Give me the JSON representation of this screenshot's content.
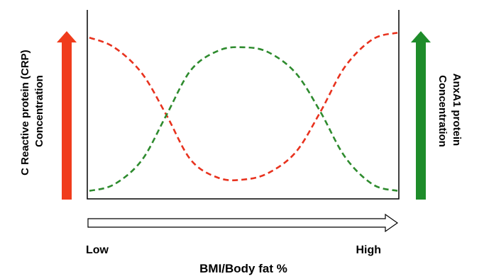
{
  "chart_data": {
    "type": "line",
    "title": "",
    "xlabel": "BMI/Body fat %",
    "x_tick_labels": [
      "Low",
      "High"
    ],
    "left_axis_label": [
      "C Reactive protein (CRP)",
      "Concentration"
    ],
    "right_axis_label": [
      "AnxA1 protein",
      "Concentration"
    ],
    "grid": false,
    "xlim": [
      0,
      1
    ],
    "ylim": [
      0,
      1
    ],
    "series": [
      {
        "color": "#e8321e",
        "style": "dashed",
        "x": [
          0.0,
          0.08,
          0.17,
          0.25,
          0.33,
          0.42,
          0.5,
          0.58,
          0.67,
          0.75,
          0.83,
          0.92,
          1.0
        ],
        "values": [
          0.96,
          0.9,
          0.74,
          0.48,
          0.2,
          0.09,
          0.08,
          0.12,
          0.25,
          0.5,
          0.78,
          0.95,
          0.99
        ]
      },
      {
        "color": "#2e8b2e",
        "style": "dashed",
        "x": [
          0.0,
          0.08,
          0.17,
          0.25,
          0.33,
          0.42,
          0.5,
          0.58,
          0.67,
          0.75,
          0.83,
          0.92,
          1.0
        ],
        "values": [
          0.01,
          0.05,
          0.2,
          0.48,
          0.76,
          0.88,
          0.9,
          0.87,
          0.74,
          0.5,
          0.22,
          0.05,
          0.01
        ]
      }
    ],
    "indicators": {
      "left_arrow_color": "#f03c1c",
      "right_arrow_color": "#1e8c2a",
      "x_arrow": "outline"
    }
  }
}
